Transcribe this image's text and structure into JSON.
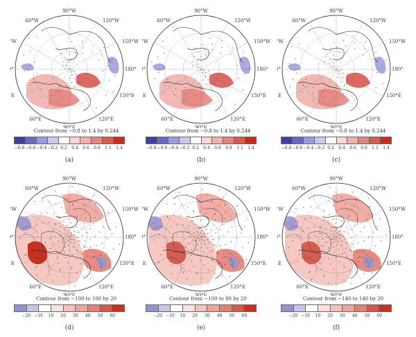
{
  "panels": [
    {
      "id": "a",
      "label": "(a)",
      "contour": "Contour from −0.8 to 1.4 by 0.244",
      "ticks": [
        "−0.8",
        "−0.6",
        "−0.4",
        "−0.2",
        "0.2",
        "0.4",
        "0.6",
        "0.8",
        "1.1",
        "1.4"
      ],
      "style": "small"
    },
    {
      "id": "b",
      "label": "(b)",
      "contour": "Contour from −0.8 to 1.4 by 0.244",
      "ticks": [
        "−0.8",
        "−0.6",
        "−0.4",
        "−0.2",
        "0.2",
        "0.4",
        "0.6",
        "0.8",
        "1.1",
        "1.4"
      ],
      "style": "small"
    },
    {
      "id": "c",
      "label": "(c)",
      "contour": "Contour from −0.8 to 1.4 by 0.244",
      "ticks": [
        "−0.8",
        "−0.6",
        "−0.4",
        "−0.2",
        "0.2",
        "0.4",
        "0.6",
        "0.8",
        "1.1",
        "1.4"
      ],
      "style": "small"
    },
    {
      "id": "d",
      "label": "(d)",
      "contour": "Contour from −100 to 100 by 20",
      "ticks": [
        "−20",
        "−10",
        "10",
        "20",
        "30",
        "40",
        "50",
        "60"
      ],
      "style": "large"
    },
    {
      "id": "e",
      "label": "(e)",
      "contour": "Contour from −100 to 80 by 20",
      "ticks": [
        "−20",
        "−10",
        "10",
        "20",
        "30",
        "40",
        "50",
        "60"
      ],
      "style": "large"
    },
    {
      "id": "f",
      "label": "(f)",
      "contour": "Contour from −140 to 140 by 20",
      "ticks": [
        "−20",
        "−10",
        "10",
        "20",
        "30",
        "40",
        "50",
        "60"
      ],
      "style": "large"
    }
  ],
  "map_labels": {
    "top": "90°W",
    "top_right": "120°W",
    "right_upper": "150°W",
    "right": "180°",
    "right_lower": "150°E",
    "bottom_right": "120°E",
    "bottom": "90°E",
    "bottom_left": "60°E",
    "left_lower": "30°E",
    "left": "0°",
    "left_upper": "30°W",
    "top_left": "60°W"
  },
  "colors": {
    "small": [
      "#3b3fa6",
      "#6669c4",
      "#9a9bd8",
      "#c9c9ec",
      "#ffffff",
      "#f6d7d5",
      "#eeb1ac",
      "#e48680",
      "#d95a51",
      "#c92b20"
    ],
    "large": [
      "#9393d0",
      "#c6c6ea",
      "#ffffff",
      "#fbe2de",
      "#f4c2bb",
      "#eea59c",
      "#e37f74",
      "#d8574a",
      "#c9301f"
    ]
  }
}
